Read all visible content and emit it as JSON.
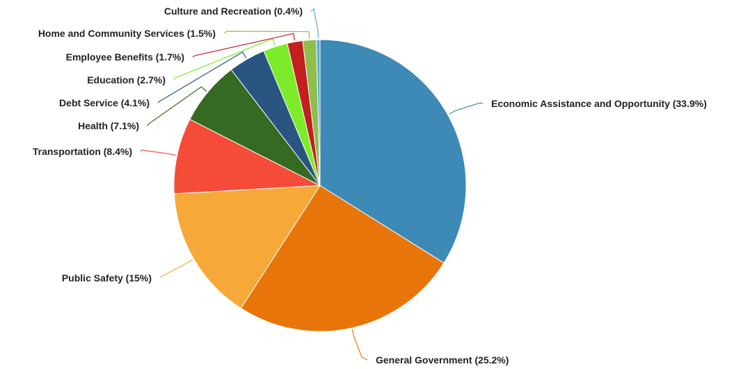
{
  "chart_data": {
    "type": "pie",
    "title": "",
    "slices": [
      {
        "label": "Economic Assistance and Opportunity (33.9%)",
        "value": 33.9,
        "color": "#3c8ab5"
      },
      {
        "label": "General Government (25.2%)",
        "value": 25.2,
        "color": "#e8750a"
      },
      {
        "label": "Public Safety (15%)",
        "value": 15.0,
        "color": "#f6a938"
      },
      {
        "label": "Transportation (8.4%)",
        "value": 8.4,
        "color": "#f44c39"
      },
      {
        "label": "Health (7.1%)",
        "value": 7.1,
        "color": "#356a22"
      },
      {
        "label": "Debt Service (4.1%)",
        "value": 4.1,
        "color": "#2a5580"
      },
      {
        "label": "Education (2.7%)",
        "value": 2.7,
        "color": "#7cec2a"
      },
      {
        "label": "Employee Benefits (1.7%)",
        "value": 1.7,
        "color": "#c21f1f"
      },
      {
        "label": "Home and Community Services (1.5%)",
        "value": 1.5,
        "color": "#8fbf4a"
      },
      {
        "label": "Culture and Recreation (0.4%)",
        "value": 0.4,
        "color": "#5aa9dc"
      }
    ]
  }
}
